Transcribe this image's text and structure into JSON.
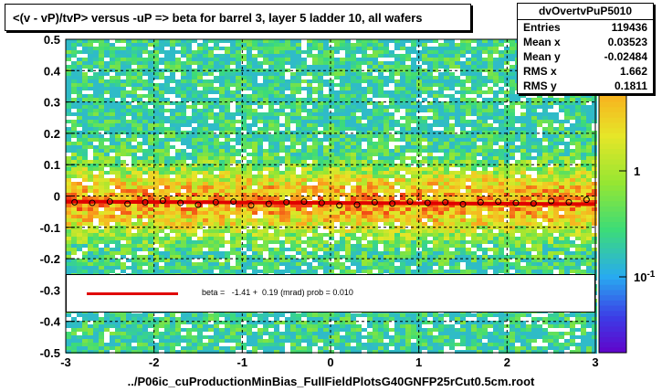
{
  "title": "<(v - vP)/tvP> versus  -uP => beta for barrel 3, layer 5 ladder 10, all wafers",
  "stats": {
    "name": "dvOvertvPuP5010",
    "rows": [
      {
        "label": "Entries",
        "value": "119436"
      },
      {
        "label": "Mean x",
        "value": "0.03523"
      },
      {
        "label": "Mean y",
        "value": "-0.02484"
      },
      {
        "label": "RMS x",
        "value": "1.662"
      },
      {
        "label": "RMS y",
        "value": "0.1811"
      }
    ]
  },
  "legend": {
    "fit_text": "beta =   -1.41 +  0.19 (mrad) prob = 0.010",
    "line_color": "#e00000"
  },
  "footer": "../P06ic_cuProductionMinBias_FullFieldPlotsG40GNFP25rCut0.5cm.root",
  "chart_data": {
    "type": "heatmap",
    "title": "<(v - vP)/tvP> versus  -uP => beta for barrel 3, layer 5 ladder 10, all wafers",
    "xlabel": "",
    "ylabel": "",
    "xlim": [
      -3,
      3
    ],
    "ylim": [
      -0.5,
      0.5
    ],
    "x_ticks": [
      "-3",
      "-2",
      "-1",
      "0",
      "1",
      "2",
      "3"
    ],
    "y_ticks": [
      "-0.5",
      "-0.4",
      "-0.3",
      "-0.2",
      "-0.1",
      "0",
      "0.1",
      "0.2",
      "0.3",
      "0.4",
      "0.5"
    ],
    "z_scale": "log",
    "z_ticks": [
      "1",
      "10-1"
    ],
    "grid": true,
    "fit_line": {
      "slope_mrad": -1.41,
      "slope_err_mrad": 0.19,
      "prob": 0.01,
      "intercept": -0.022,
      "color": "#e00000"
    },
    "profile_points": {
      "x": [
        -2.9,
        -2.7,
        -2.5,
        -2.3,
        -2.1,
        -1.9,
        -1.7,
        -1.5,
        -1.3,
        -1.1,
        -0.9,
        -0.7,
        -0.5,
        -0.3,
        -0.1,
        0.1,
        0.3,
        0.5,
        0.7,
        0.9,
        1.1,
        1.3,
        1.5,
        1.7,
        1.9,
        2.1,
        2.3,
        2.5,
        2.7,
        2.9
      ],
      "y": [
        -0.02,
        -0.022,
        -0.018,
        -0.025,
        -0.02,
        -0.015,
        -0.022,
        -0.028,
        -0.02,
        -0.018,
        -0.03,
        -0.025,
        -0.02,
        -0.018,
        -0.022,
        -0.03,
        -0.028,
        -0.02,
        -0.024,
        -0.018,
        -0.022,
        -0.02,
        -0.026,
        -0.02,
        -0.018,
        -0.022,
        -0.024,
        -0.016,
        -0.02,
        -0.012
      ]
    }
  }
}
